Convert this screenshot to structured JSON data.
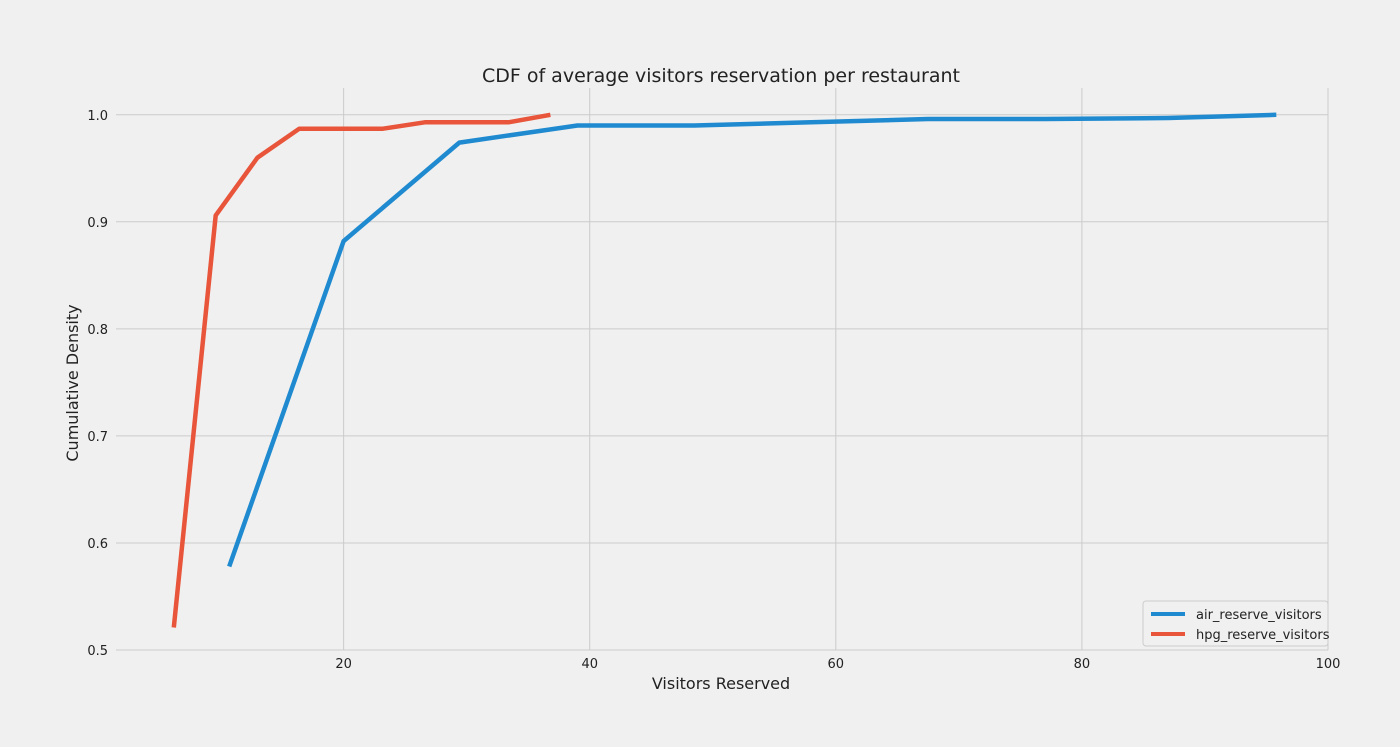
{
  "chart_data": {
    "type": "line",
    "title": "CDF of average visitors reservation per restaurant",
    "xlabel": "Visitors Reserved",
    "ylabel": "Cumulative Density",
    "xlim": [
      1.5,
      100
    ],
    "ylim": [
      0.5,
      1.025
    ],
    "xticks": [
      20,
      40,
      60,
      80,
      100
    ],
    "yticks": [
      0.5,
      0.6,
      0.7,
      0.8,
      0.9,
      1.0
    ],
    "xtick_labels": [
      "20",
      "40",
      "60",
      "80",
      "100"
    ],
    "ytick_labels": [
      "0.5",
      "0.6",
      "0.7",
      "0.8",
      "0.9",
      "1.0"
    ],
    "grid": true,
    "legend_position": "bottom-right",
    "series": [
      {
        "name": "air_reserve_visitors",
        "color": "#1f8ad0",
        "x": [
          10.7,
          20.0,
          29.4,
          39.0,
          48.5,
          58.0,
          67.5,
          77.0,
          87.0,
          95.8
        ],
        "y": [
          0.578,
          0.882,
          0.974,
          0.99,
          0.99,
          0.993,
          0.996,
          0.996,
          0.997,
          1.0
        ]
      },
      {
        "name": "hpg_reserve_visitors",
        "color": "#e8553a",
        "x": [
          6.2,
          9.6,
          13.0,
          16.4,
          19.8,
          23.2,
          26.6,
          30.0,
          33.4,
          36.8
        ],
        "y": [
          0.521,
          0.906,
          0.96,
          0.987,
          0.987,
          0.987,
          0.993,
          0.993,
          0.993,
          1.0
        ]
      }
    ]
  }
}
